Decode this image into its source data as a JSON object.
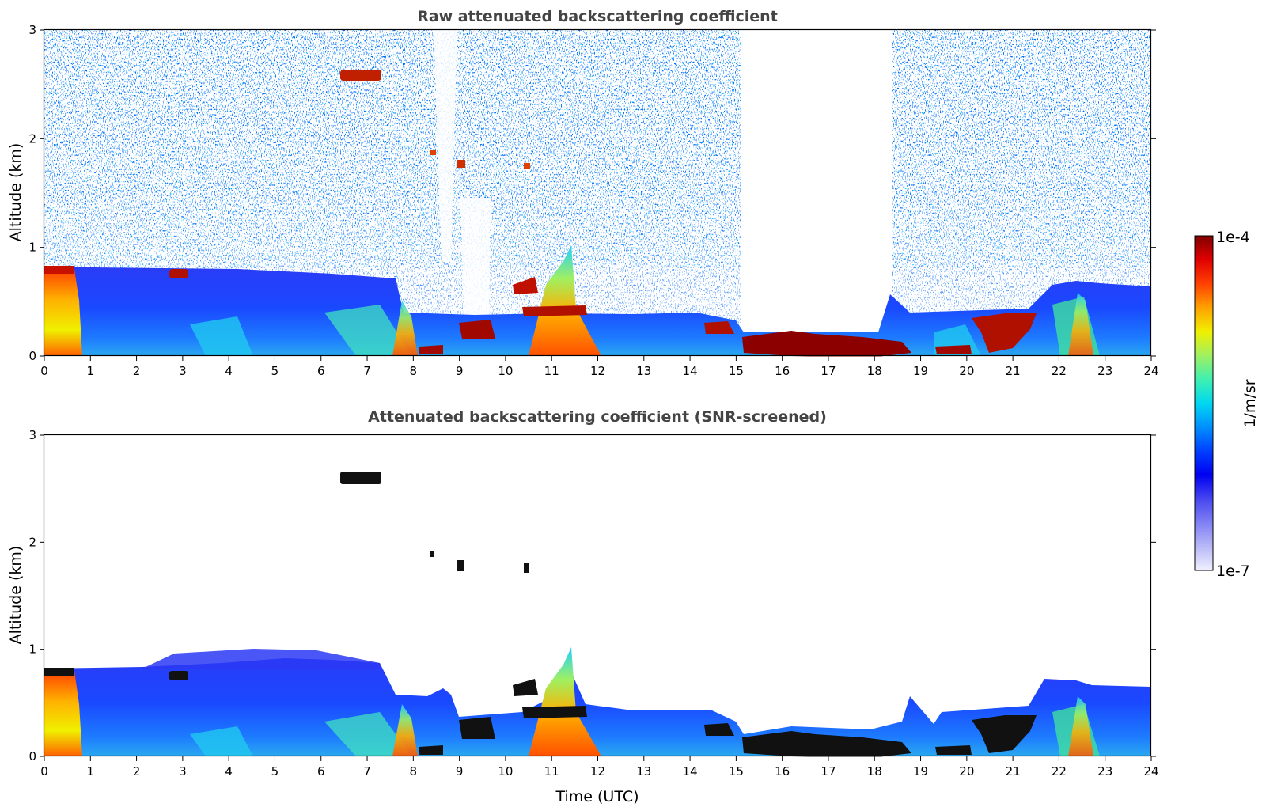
{
  "chart_data": [
    {
      "type": "heatmap",
      "title": "Raw attenuated backscattering coefficient",
      "xlabel": "",
      "ylabel": "Altitude (km)",
      "xlim": [
        0,
        24
      ],
      "ylim": [
        0,
        3
      ],
      "xticks": [
        "0",
        "1",
        "2",
        "3",
        "4",
        "5",
        "6",
        "7",
        "8",
        "9",
        "10",
        "11",
        "12",
        "13",
        "14",
        "15",
        "16",
        "17",
        "18",
        "19",
        "20",
        "21",
        "22",
        "23",
        "24"
      ],
      "yticks": [
        "0",
        "1",
        "2",
        "3"
      ],
      "layers": [
        {
          "name": "boundary layer",
          "t_start": 0.0,
          "t_end": 24.0,
          "alt_top_km": 0.7,
          "level": "low"
        },
        {
          "name": "surface aerosol",
          "t_start": 0.0,
          "t_end": 0.7,
          "alt_top_km": 0.8,
          "level": "high"
        },
        {
          "name": "residual layer",
          "t_start": 2.7,
          "t_end": 3.1,
          "alt_bottom_km": 0.7,
          "alt_top_km": 0.8,
          "level": "max"
        },
        {
          "name": "elevated layer",
          "t_start": 6.4,
          "t_end": 7.3,
          "alt_bottom_km": 2.5,
          "alt_top_km": 2.65,
          "level": "max"
        },
        {
          "name": "small cloud 1",
          "t_start": 8.2,
          "t_end": 8.35,
          "alt_bottom_km": 1.85,
          "alt_top_km": 1.9,
          "level": "max"
        },
        {
          "name": "small cloud 2",
          "t_start": 8.8,
          "t_end": 9.0,
          "alt_bottom_km": 1.75,
          "alt_top_km": 1.85,
          "level": "max"
        },
        {
          "name": "small cloud 3",
          "t_start": 10.2,
          "t_end": 10.35,
          "alt_bottom_km": 1.72,
          "alt_top_km": 1.8,
          "level": "max"
        },
        {
          "name": "convective plume",
          "t_start": 10.5,
          "t_end": 11.6,
          "alt_top_km": 1.0,
          "level": "high"
        },
        {
          "name": "low cloud 1",
          "t_start": 8.8,
          "t_end": 9.6,
          "alt_bottom_km": 0.15,
          "alt_top_km": 0.35,
          "level": "max"
        },
        {
          "name": "low cloud 2",
          "t_start": 14.3,
          "t_end": 14.8,
          "alt_bottom_km": 0.2,
          "alt_top_km": 0.3,
          "level": "max"
        },
        {
          "name": "stratus",
          "t_start": 15.0,
          "t_end": 18.3,
          "alt_bottom_km": 0.05,
          "alt_top_km": 0.25,
          "level": "max"
        },
        {
          "name": "low cloud 3",
          "t_start": 19.0,
          "t_end": 19.8,
          "alt_bottom_km": 0.05,
          "alt_top_km": 0.12,
          "level": "max"
        },
        {
          "name": "low cloud 4",
          "t_start": 20.0,
          "t_end": 21.3,
          "alt_bottom_km": 0.1,
          "alt_top_km": 0.4,
          "level": "max"
        }
      ]
    },
    {
      "type": "heatmap",
      "title": "Attenuated backscattering coefficient (SNR-screened)",
      "xlabel": "Time (UTC)",
      "ylabel": "Altitude (km)",
      "xlim": [
        0,
        24
      ],
      "ylim": [
        0,
        3
      ],
      "xticks": [
        "0",
        "1",
        "2",
        "3",
        "4",
        "5",
        "6",
        "7",
        "8",
        "9",
        "10",
        "11",
        "12",
        "13",
        "14",
        "15",
        "16",
        "17",
        "18",
        "19",
        "20",
        "21",
        "22",
        "23",
        "24"
      ],
      "yticks": [
        "0",
        "1",
        "2",
        "3"
      ]
    }
  ],
  "colorbar": {
    "label": "1/m/sr",
    "max_label": "1e-4",
    "min_label": "1e-7",
    "colors": [
      "#f0f0ff",
      "#b8b8f8",
      "#8080f4",
      "#4646f0",
      "#0000f0",
      "#0040ff",
      "#0090ff",
      "#00d8f0",
      "#40f0b0",
      "#a0f060",
      "#f0f000",
      "#ffa000",
      "#ff4000",
      "#e00000",
      "#800000"
    ]
  }
}
